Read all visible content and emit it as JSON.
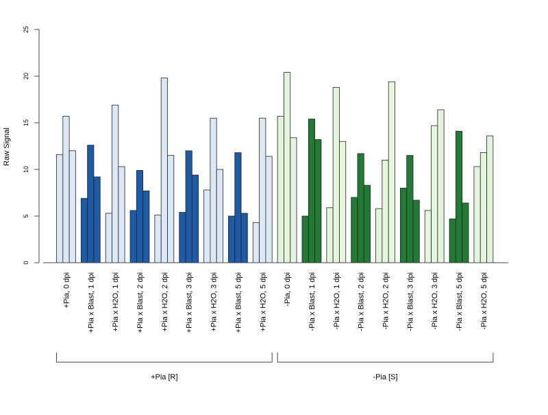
{
  "chart_data": {
    "type": "bar",
    "ylabel": "Raw Signal",
    "ylim": [
      0,
      25
    ],
    "yticks": [
      0,
      5,
      10,
      15,
      20,
      25
    ],
    "bars_per_category": 3,
    "categories": [
      "+Pia, 0 dpi",
      "+Pia x Blast, 1 dpi",
      "+Pia x H2O, 1 dpi",
      "+Pia x Blast, 2 dpi",
      "+Pia x H2O, 2 dpi",
      "+Pia x Blast, 3 dpi",
      "+Pia x H2O, 3 dpi",
      "+Pia x Blast, 5 dpi",
      "+Pia x H2O, 5 dpi",
      "-Pia, 0 dpi",
      "-Pia x Blast, 1 dpi",
      "-Pia x H2O, 1 dpi",
      "-Pia x Blast, 2 dpi",
      "-Pia x H2O, 2 dpi",
      "-Pia x Blast, 3 dpi",
      "-Pia x H2O, 3 dpi",
      "-Pia x Blast, 5 dpi",
      "-Pia x H2O, 5 dpi"
    ],
    "values": [
      [
        11.6,
        15.7,
        12.0
      ],
      [
        6.9,
        12.6,
        9.2
      ],
      [
        5.3,
        16.9,
        10.3
      ],
      [
        5.6,
        9.9,
        7.7
      ],
      [
        5.1,
        19.8,
        11.5
      ],
      [
        5.4,
        12.0,
        9.4
      ],
      [
        7.8,
        15.5,
        10.0
      ],
      [
        5.0,
        11.8,
        5.3
      ],
      [
        4.3,
        15.5,
        11.4
      ],
      [
        15.7,
        20.4,
        13.4
      ],
      [
        5.0,
        15.4,
        13.2
      ],
      [
        5.9,
        18.8,
        13.0
      ],
      [
        7.0,
        11.7,
        8.3
      ],
      [
        5.8,
        11.0,
        19.4
      ],
      [
        8.0,
        11.5,
        6.7
      ],
      [
        5.6,
        14.7,
        16.4
      ],
      [
        4.7,
        14.1,
        6.4
      ],
      [
        10.3,
        11.8,
        13.6
      ]
    ],
    "category_colors": [
      "#dce8f6",
      "#1f5aa6",
      "#dce8f6",
      "#1f5aa6",
      "#dce8f6",
      "#1f5aa6",
      "#dce8f6",
      "#1f5aa6",
      "#dce8f6",
      "#e3f5dd",
      "#237a35",
      "#e3f5dd",
      "#237a35",
      "#e3f5dd",
      "#237a35",
      "#e3f5dd",
      "#237a35",
      "#e3f5dd"
    ],
    "groups": [
      {
        "label": "+Pia [R]",
        "from": 0,
        "to": 8
      },
      {
        "label": "-Pia [S]",
        "from": 9,
        "to": 17
      }
    ]
  }
}
